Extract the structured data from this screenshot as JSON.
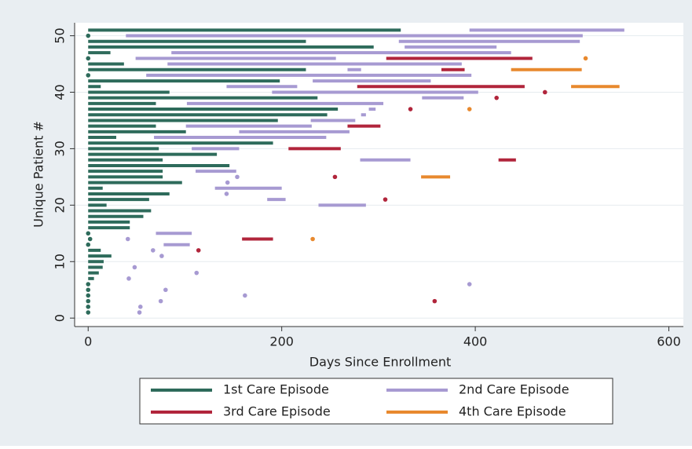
{
  "chart_data": {
    "type": "episodes",
    "x_label": "Days Since Enrollment",
    "y_label": "Unique Patient #",
    "xlim": [
      -14,
      615
    ],
    "ylim": [
      -1.5,
      52.3
    ],
    "xticks": [
      0,
      200,
      400,
      600
    ],
    "yticks": [
      0,
      10,
      20,
      30,
      40,
      50
    ],
    "grid": true,
    "legend": "bottom",
    "series": [
      {
        "name": "1st Care Episode",
        "color": "#2e6b5b",
        "patients": [
          51,
          50,
          49,
          48,
          47,
          46,
          45,
          44,
          43,
          42,
          41,
          40,
          39,
          38,
          37,
          36,
          35,
          34,
          33,
          32,
          31,
          30,
          29,
          28,
          27,
          26,
          25,
          24,
          23,
          22,
          21,
          20,
          19,
          18,
          17,
          16,
          15,
          14,
          13,
          12,
          11,
          10,
          9,
          8,
          7,
          6,
          5,
          4,
          3,
          2,
          1
        ],
        "starts": [
          0,
          0,
          0,
          0,
          0,
          0,
          0,
          0,
          0,
          0,
          0,
          0,
          0,
          0,
          0,
          0,
          0,
          0,
          0,
          0,
          0,
          0,
          0,
          0,
          0,
          0,
          0,
          0,
          0,
          0,
          0,
          0,
          0,
          0,
          0,
          0,
          0,
          2,
          0,
          0,
          0,
          0,
          0,
          0,
          0,
          0,
          0,
          0,
          0,
          0,
          0
        ],
        "ends": [
          323,
          0,
          225,
          295,
          23,
          0,
          37,
          225,
          0,
          198,
          13,
          84,
          237,
          70,
          258,
          247,
          196,
          70,
          101,
          29,
          191,
          73,
          133,
          77,
          146,
          77,
          77,
          97,
          15,
          84,
          63,
          19,
          65,
          57,
          43,
          43,
          0,
          2,
          0,
          13,
          24,
          16,
          15,
          11,
          6,
          0,
          0,
          0,
          0,
          0,
          0
        ]
      },
      {
        "name": "2nd Care Episode",
        "color": "#a79ad2",
        "patients": [
          51,
          50,
          49,
          48,
          47,
          46,
          45,
          44,
          43,
          42,
          41,
          40,
          39,
          38,
          37,
          36,
          35,
          34,
          33,
          32,
          30,
          28,
          26,
          25,
          24,
          23,
          22,
          21,
          20,
          15,
          14,
          13,
          12,
          11,
          9,
          8,
          7,
          6,
          5,
          4,
          3,
          2,
          1
        ],
        "starts": [
          394,
          39,
          321,
          327,
          86,
          49,
          82,
          268,
          60,
          232,
          143,
          190,
          345,
          102,
          290,
          282,
          230,
          101,
          156,
          68,
          107,
          281,
          111,
          154,
          144,
          131,
          143,
          185,
          238,
          70,
          41,
          78,
          67,
          76,
          48,
          112,
          42,
          394,
          80,
          162,
          75,
          54,
          53
        ],
        "ends": [
          554,
          511,
          508,
          422,
          437,
          256,
          386,
          282,
          396,
          354,
          216,
          403,
          388,
          305,
          297,
          287,
          276,
          231,
          270,
          246,
          156,
          333,
          153,
          154,
          144,
          200,
          143,
          204,
          287,
          107,
          41,
          105,
          67,
          76,
          48,
          112,
          42,
          394,
          80,
          162,
          75,
          54,
          53
        ]
      },
      {
        "name": "3rd Care Episode",
        "color": "#b1253b",
        "patients": [
          46,
          44,
          41,
          40,
          39,
          37,
          34,
          30,
          28,
          25,
          21,
          14,
          12,
          3
        ],
        "starts": [
          308,
          365,
          278,
          472,
          422,
          333,
          268,
          207,
          424,
          255,
          307,
          159,
          114,
          358
        ],
        "ends": [
          459,
          389,
          451,
          472,
          422,
          333,
          302,
          261,
          442,
          255,
          307,
          191,
          114,
          358
        ]
      },
      {
        "name": "4th Care Episode",
        "color": "#e8892e",
        "patients": [
          46,
          44,
          41,
          37,
          25,
          14
        ],
        "starts": [
          514,
          437,
          499,
          394,
          344,
          232
        ],
        "ends": [
          514,
          510,
          549,
          394,
          374,
          232
        ]
      }
    ]
  }
}
